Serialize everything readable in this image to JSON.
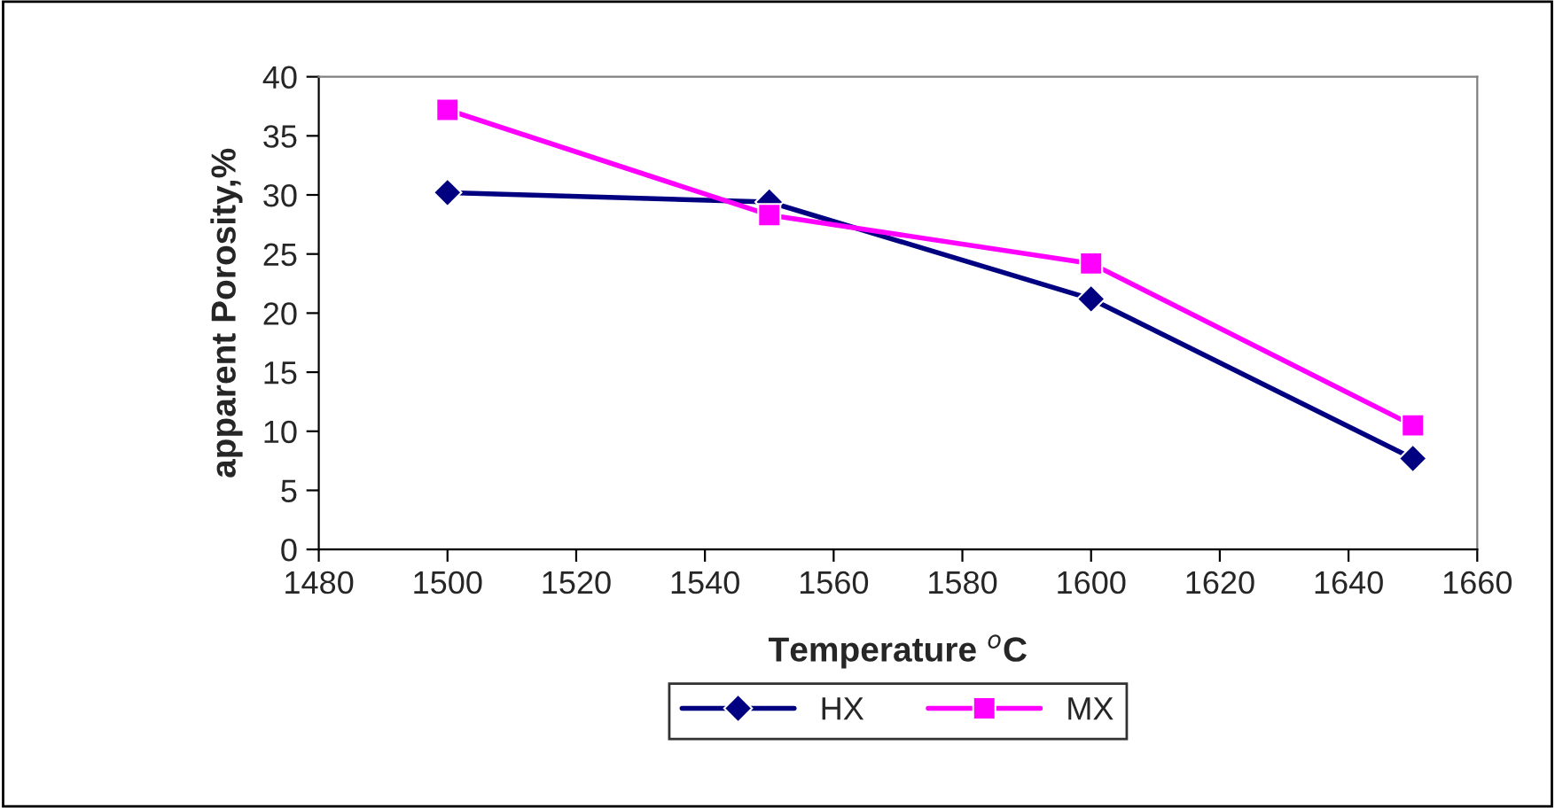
{
  "chart_data": {
    "type": "line",
    "xlabel": "Temperature $^{o}$C",
    "ylabel": "apparent Porosity,%",
    "x": [
      1500,
      1550,
      1600,
      1650
    ],
    "series": [
      {
        "name": "HX",
        "color": "#000080",
        "marker": "diamond",
        "values": [
          30.2,
          29.4,
          21.2,
          7.7
        ]
      },
      {
        "name": "MX",
        "color": "#ff00ff",
        "marker": "square",
        "values": [
          37.2,
          28.3,
          24.2,
          10.5
        ]
      }
    ],
    "xlim": [
      1480,
      1660
    ],
    "xticks": [
      1480,
      1500,
      1520,
      1540,
      1560,
      1580,
      1600,
      1620,
      1640,
      1660
    ],
    "ylim": [
      0,
      40
    ],
    "yticks": [
      0,
      5,
      10,
      15,
      20,
      25,
      30,
      35,
      40
    ],
    "grid": false,
    "legend": "bottom",
    "line_style": "solid"
  }
}
